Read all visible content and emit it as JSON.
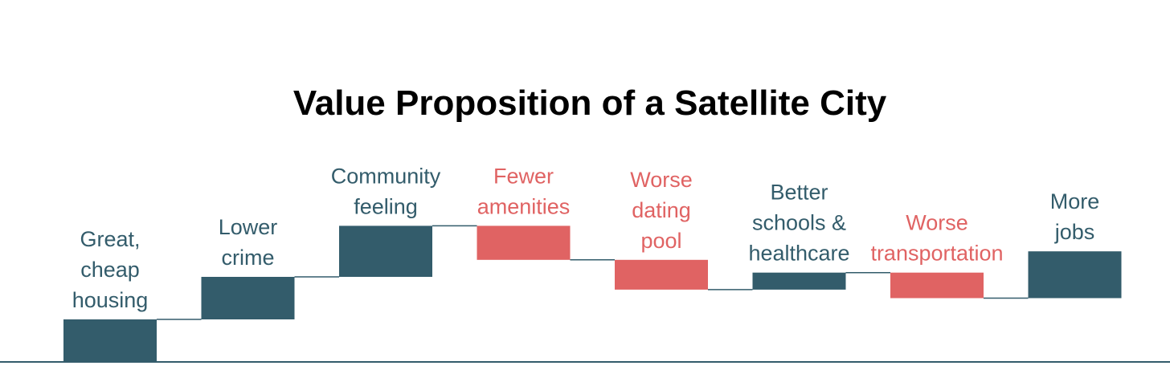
{
  "chart_data": {
    "type": "waterfall",
    "title": "Value Proposition of a Satellite City",
    "categories": [
      [
        "Great,",
        "cheap",
        "housing"
      ],
      [
        "Lower",
        "crime"
      ],
      [
        "Community",
        "feeling"
      ],
      [
        "Fewer",
        "amenities"
      ],
      [
        "Worse",
        "dating",
        "pool"
      ],
      [
        "Better",
        "schools &",
        "healthcare"
      ],
      [
        "Worse",
        "transportation"
      ],
      [
        "More",
        "jobs"
      ]
    ],
    "values": [
      5,
      5,
      6,
      -4,
      -3.5,
      2,
      -3,
      5.5
    ],
    "ylim": [
      0,
      17
    ],
    "xlabel": "",
    "ylabel": "",
    "colors": {
      "positive": "#335c6b",
      "negative": "#e06363",
      "connector": "#335c6b",
      "baseline": "#335c6b"
    }
  }
}
